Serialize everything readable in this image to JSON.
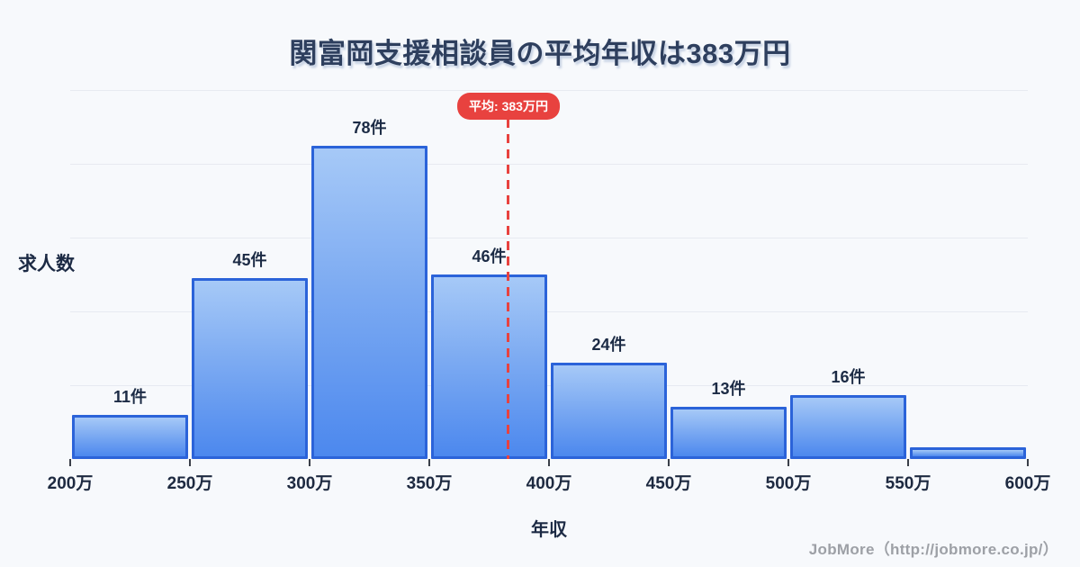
{
  "page": {
    "title": "関富岡支援相談員の平均年収は383万円",
    "footer": "JobMore（http://jobmore.co.jp/）"
  },
  "axis": {
    "y_label": "求人数",
    "x_label": "年収"
  },
  "colors": {
    "background": "#f7f9fc",
    "title_text": "#2e3f5e",
    "bar_fill_top": "#a6c9f7",
    "bar_fill_bottom": "#4c88ee",
    "bar_border": "#2b63d9",
    "average_red": "#e8423f",
    "grid_line": "#e7eaf1",
    "axis_text": "#1d2940",
    "footer_text": "#9da0a6"
  },
  "chart_data": {
    "type": "bar",
    "subtype": "histogram",
    "title": "関富岡支援相談員の平均年収は383万円",
    "xlabel": "年収",
    "ylabel": "求人数",
    "x_tick_labels": [
      "200万",
      "250万",
      "300万",
      "350万",
      "400万",
      "450万",
      "500万",
      "550万",
      "600万"
    ],
    "x_range_man_yen": [
      200,
      600
    ],
    "bin_width_man_yen": 50,
    "values": [
      11,
      45,
      78,
      46,
      24,
      13,
      16,
      3
    ],
    "bar_labels": [
      "11件",
      "45件",
      "78件",
      "46件",
      "24件",
      "13件",
      "16件",
      ""
    ],
    "ylim": [
      0,
      92
    ],
    "grid": true,
    "gridline_count": 5,
    "legend": false,
    "average": {
      "value_man_yen": 383,
      "label": "平均: 383万円"
    }
  }
}
